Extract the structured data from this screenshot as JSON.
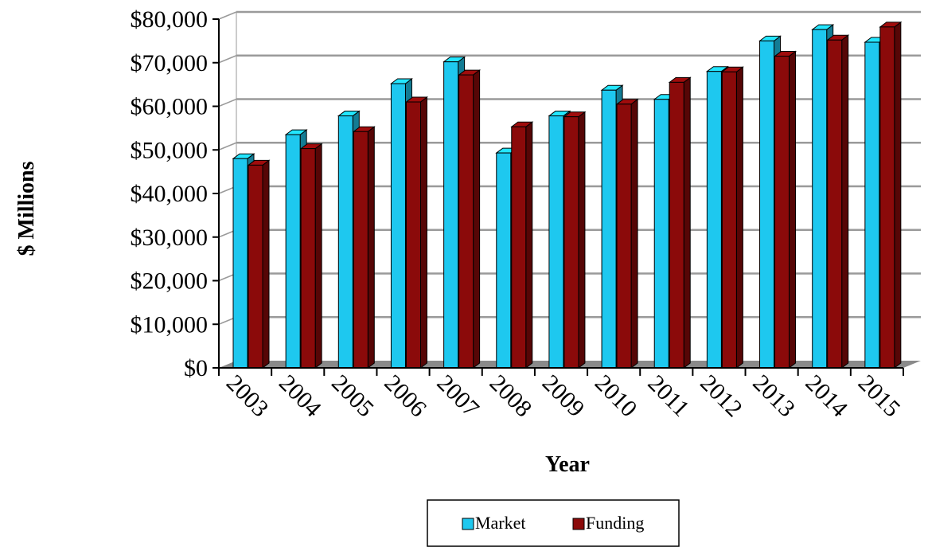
{
  "chart_data": {
    "type": "bar",
    "title": "",
    "xlabel": "Year",
    "ylabel": "$ Millions",
    "categories": [
      "2003",
      "2004",
      "2005",
      "2006",
      "2007",
      "2008",
      "2009",
      "2010",
      "2011",
      "2012",
      "2013",
      "2014",
      "2015"
    ],
    "series": [
      {
        "name": "Market",
        "color": "#1ec8ef",
        "values": [
          48000,
          53500,
          57800,
          65200,
          70200,
          49300,
          57800,
          63700,
          61600,
          68000,
          75000,
          77600,
          74700
        ]
      },
      {
        "name": "Funding",
        "color": "#8b0a0a",
        "values": [
          46500,
          50300,
          54200,
          61000,
          67200,
          55300,
          57600,
          60500,
          65500,
          67900,
          71500,
          75200,
          78200
        ]
      }
    ],
    "ylim": [
      0,
      80000
    ],
    "yticks": [
      "$0",
      "$10,000",
      "$20,000",
      "$30,000",
      "$40,000",
      "$50,000",
      "$60,000",
      "$70,000",
      "$80,000"
    ],
    "grid": true,
    "legend": "bottom",
    "style": "3d-clustered-column"
  }
}
